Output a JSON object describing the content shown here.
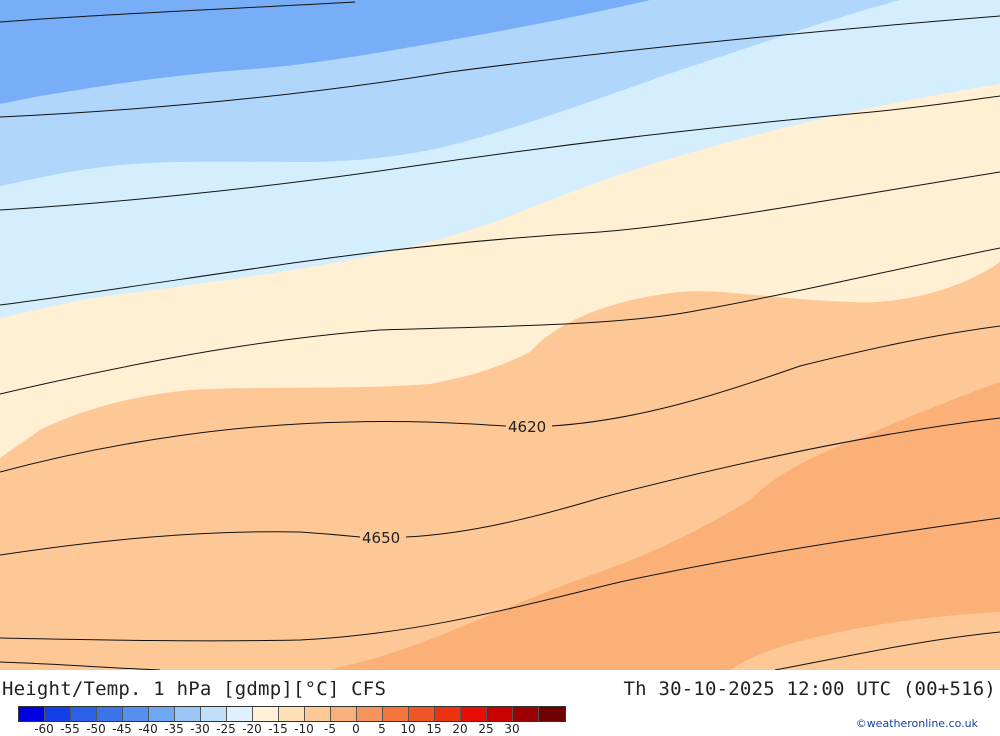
{
  "title": {
    "left": "Height/Temp. 1 hPa [gdmp][°C] CFS",
    "right": "Th 30-10-2025 12:00 UTC (00+516)"
  },
  "contour_labels": [
    "4620",
    "4650"
  ],
  "legend": {
    "colors": [
      "#0000e0",
      "#1140e8",
      "#2a5fe8",
      "#3c74ea",
      "#5590ee",
      "#6fa8f2",
      "#9ac6f6",
      "#bfe0fa",
      "#dff1fc",
      "#fff0d8",
      "#fde0b4",
      "#fcc896",
      "#fab07a",
      "#f7945c",
      "#f4763e",
      "#f05726",
      "#ec3210",
      "#e80d00",
      "#c80000",
      "#9c0000",
      "#700000"
    ],
    "ticks": [
      "-60",
      "-55",
      "-50",
      "-45",
      "-40",
      "-35",
      "-30",
      "-25",
      "-20",
      "-15",
      "-10",
      "-5",
      "0",
      "5",
      "10",
      "15",
      "20",
      "25",
      "30"
    ]
  },
  "credit": "©weatheronline.co.uk",
  "palette": {
    "deep_blue": "#78aef8",
    "mid_blue": "#b0d6fb",
    "light_blue": "#d4eefd",
    "cream": "#fff0d4",
    "peach": "#fdc895",
    "orange": "#fbb078"
  }
}
